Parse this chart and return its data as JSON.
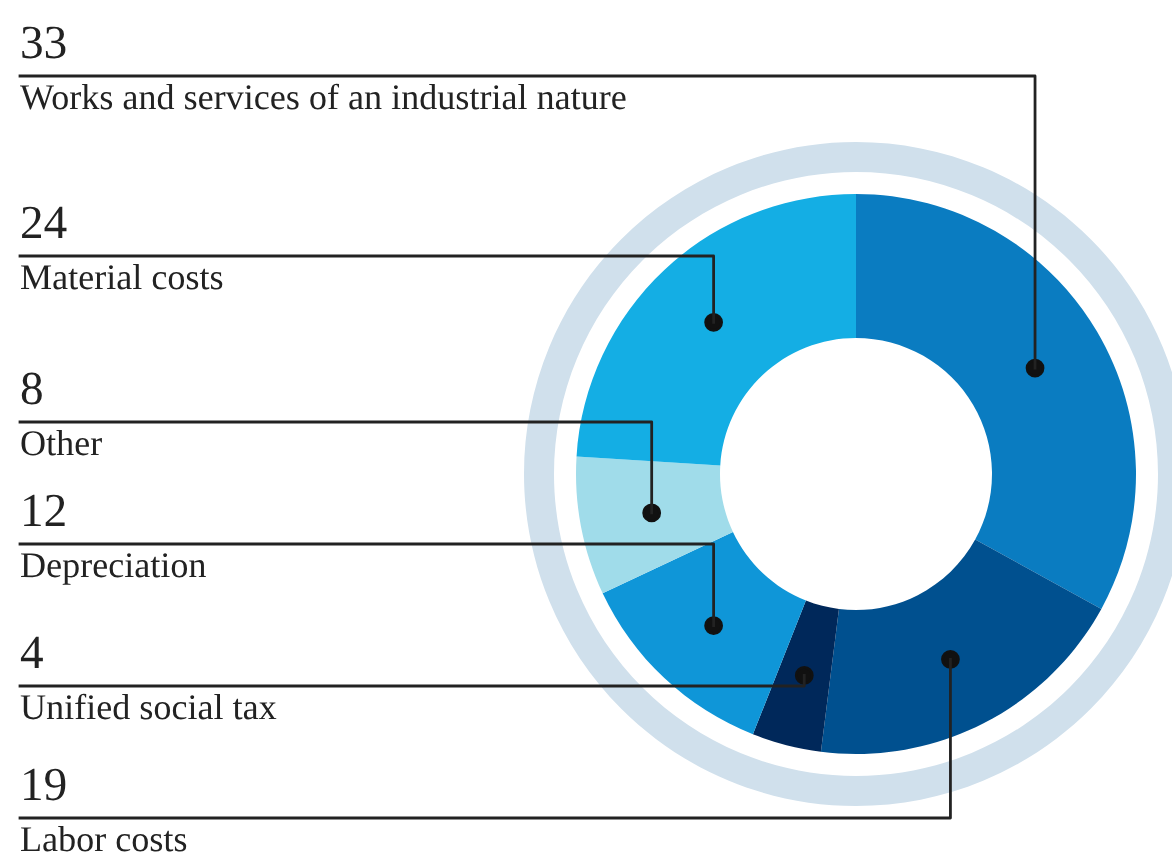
{
  "chart_data": {
    "type": "donut",
    "categories": [
      "Works and services of an industrial nature",
      "Labor costs",
      "Unified social tax",
      "Depreciation",
      "Other",
      "Material costs"
    ],
    "values": [
      33,
      19,
      4,
      12,
      8,
      24
    ],
    "colors": [
      "#0a7cc1",
      "#00508f",
      "#00285a",
      "#0f96d8",
      "#a0dcea",
      "#14aee4"
    ],
    "data_labels": true
  }
}
